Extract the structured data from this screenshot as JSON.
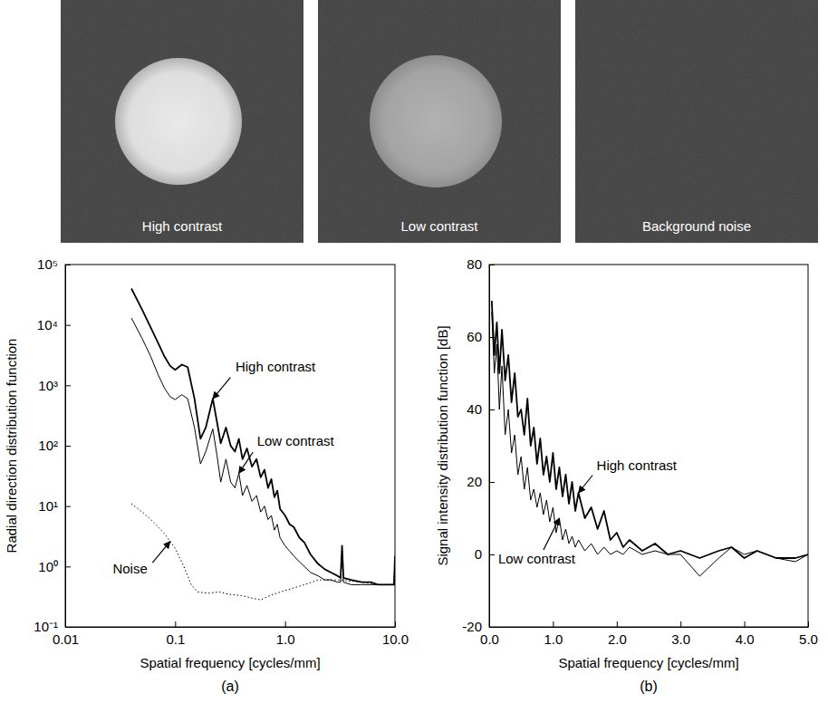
{
  "images": [
    {
      "label": "High contrast"
    },
    {
      "label": "Low contrast"
    },
    {
      "label": "Background noise"
    }
  ],
  "chart_data": [
    {
      "type": "line",
      "caption": "(a)",
      "x_label": "Spatial frequency [cycles/mm]",
      "y_label": "Radial direction distribution function",
      "log": true,
      "grid": false,
      "xlim": [
        0.01,
        10
      ],
      "xticks": [
        0.01,
        0.1,
        {
          "value": 1,
          "label": "1.0"
        },
        {
          "value": 10,
          "label": "10.0"
        }
      ],
      "ylim": [
        0.1,
        100000
      ],
      "yticks": [
        {
          "value": 0.1,
          "label": "10⁻¹"
        },
        {
          "value": 1,
          "label": "10⁰"
        },
        {
          "value": 10,
          "label": "10¹"
        },
        {
          "value": 100,
          "label": "10²"
        },
        {
          "value": 1000,
          "label": "10³"
        },
        {
          "value": 10000,
          "label": "10⁴"
        },
        {
          "value": 100000,
          "label": "10⁵"
        }
      ],
      "series": [
        {
          "name": "High contrast",
          "color": "#000000",
          "line_style": "solid",
          "x": [
            0.04,
            0.05,
            0.06,
            0.07,
            0.08,
            0.09,
            0.1,
            0.115,
            0.13,
            0.15,
            0.17,
            0.19,
            0.22,
            0.24,
            0.26,
            0.29,
            0.32,
            0.35,
            0.38,
            0.41,
            0.45,
            0.5,
            0.55,
            0.6,
            0.65,
            0.7,
            0.75,
            0.8,
            0.85,
            0.9,
            1.0,
            1.1,
            1.2,
            1.35,
            1.5,
            1.7,
            2.0,
            2.3,
            2.6,
            3.0,
            3.2,
            3.3,
            3.4,
            4.0,
            5.0,
            6.0,
            7.0,
            8.0,
            9.0,
            9.8,
            10.0
          ],
          "values": [
            40000,
            18000,
            9000,
            5000,
            3000,
            2100,
            1800,
            2200,
            2000,
            600,
            130,
            200,
            600,
            250,
            110,
            200,
            100,
            80,
            130,
            60,
            90,
            45,
            60,
            30,
            40,
            20,
            28,
            14,
            18,
            9,
            7,
            5,
            4.5,
            3,
            2.5,
            1.6,
            1.1,
            0.9,
            0.8,
            0.7,
            0.65,
            2.2,
            0.65,
            0.6,
            0.55,
            0.55,
            0.5,
            0.5,
            0.5,
            0.5,
            1.5
          ]
        },
        {
          "name": "Low contrast",
          "color": "#000000",
          "line_style": "solid",
          "x": [
            0.04,
            0.05,
            0.06,
            0.07,
            0.08,
            0.09,
            0.1,
            0.115,
            0.13,
            0.15,
            0.17,
            0.19,
            0.22,
            0.24,
            0.26,
            0.29,
            0.32,
            0.35,
            0.38,
            0.41,
            0.45,
            0.5,
            0.55,
            0.6,
            0.65,
            0.7,
            0.75,
            0.8,
            0.85,
            0.9,
            1.0,
            1.1,
            1.2,
            1.35,
            1.5,
            1.7,
            2.0,
            2.3,
            2.6,
            3.0,
            3.2,
            3.3,
            3.4,
            4.0,
            5.0,
            6.0,
            7.0,
            8.0,
            9.0,
            9.8,
            10.0
          ],
          "values": [
            13000,
            6000,
            3000,
            1500,
            900,
            650,
            580,
            700,
            600,
            200,
            50,
            80,
            190,
            70,
            25,
            60,
            25,
            20,
            35,
            15,
            22,
            12,
            15,
            8,
            10,
            6,
            7,
            4,
            5,
            3,
            2.2,
            1.8,
            1.5,
            1.2,
            1.0,
            0.8,
            0.7,
            0.6,
            0.6,
            0.55,
            0.55,
            1.8,
            0.55,
            0.5,
            0.5,
            0.5,
            0.5,
            0.5,
            0.5,
            0.5,
            1.2
          ]
        },
        {
          "name": "Noise",
          "color": "#000000",
          "line_style": "dotted",
          "x": [
            0.04,
            0.05,
            0.06,
            0.07,
            0.08,
            0.09,
            0.1,
            0.12,
            0.14,
            0.16,
            0.2,
            0.25,
            0.3,
            0.4,
            0.5,
            0.6,
            0.7,
            0.8,
            1.0,
            1.5,
            2.0,
            3.0,
            5.0,
            7.0,
            10.0
          ],
          "values": [
            11,
            8,
            6,
            4.5,
            3.5,
            2.6,
            2,
            1,
            0.5,
            0.38,
            0.36,
            0.38,
            0.35,
            0.33,
            0.3,
            0.28,
            0.32,
            0.35,
            0.4,
            0.5,
            0.6,
            0.6,
            0.55,
            0.5,
            0.5
          ]
        }
      ]
    },
    {
      "type": "line",
      "caption": "(b)",
      "x_label": "Spatial frequency [cycles/mm]",
      "y_label": "Signal intensity distribution function [dB]",
      "grid": false,
      "xlim": [
        0,
        5
      ],
      "xticks": [
        {
          "value": 0,
          "label": "0.0"
        },
        {
          "value": 1,
          "label": "1.0"
        },
        {
          "value": 2,
          "label": "2.0"
        },
        {
          "value": 3,
          "label": "3.0"
        },
        {
          "value": 4,
          "label": "4.0"
        },
        {
          "value": 5,
          "label": "5.0"
        }
      ],
      "ylim": [
        -20,
        80
      ],
      "yticks": [
        -20,
        0,
        20,
        40,
        60,
        80
      ],
      "series": [
        {
          "name": "High contrast",
          "color": "#000000",
          "line_style": "solid",
          "x": [
            0.04,
            0.08,
            0.12,
            0.16,
            0.2,
            0.25,
            0.3,
            0.35,
            0.4,
            0.45,
            0.5,
            0.55,
            0.6,
            0.65,
            0.7,
            0.75,
            0.8,
            0.85,
            0.9,
            0.95,
            1.0,
            1.05,
            1.1,
            1.15,
            1.2,
            1.25,
            1.3,
            1.35,
            1.4,
            1.5,
            1.6,
            1.7,
            1.8,
            1.9,
            2.0,
            2.1,
            2.2,
            2.4,
            2.6,
            2.8,
            3.0,
            3.3,
            3.6,
            3.8,
            4.0,
            4.2,
            4.5,
            4.8,
            5.0
          ],
          "values": [
            70,
            55,
            64,
            50,
            62,
            48,
            55,
            42,
            50,
            38,
            40,
            33,
            43,
            30,
            35,
            25,
            32,
            22,
            27,
            20,
            28,
            18,
            24,
            16,
            22,
            14,
            20,
            12,
            17,
            10,
            13,
            7,
            12,
            4,
            6,
            2,
            4,
            1,
            3,
            0,
            1,
            -1,
            1,
            2,
            -1,
            1,
            -1,
            -1,
            0
          ]
        },
        {
          "name": "Low contrast",
          "color": "#000000",
          "line_style": "solid",
          "x": [
            0.04,
            0.08,
            0.12,
            0.16,
            0.2,
            0.25,
            0.3,
            0.35,
            0.4,
            0.45,
            0.5,
            0.55,
            0.6,
            0.65,
            0.7,
            0.75,
            0.8,
            0.85,
            0.9,
            0.95,
            1.0,
            1.05,
            1.1,
            1.15,
            1.2,
            1.25,
            1.3,
            1.35,
            1.4,
            1.5,
            1.6,
            1.7,
            1.8,
            1.9,
            2.0,
            2.1,
            2.2,
            2.4,
            2.6,
            2.8,
            3.0,
            3.3,
            3.6,
            3.8,
            4.0,
            4.2,
            4.5,
            4.8,
            5.0
          ],
          "values": [
            67,
            50,
            58,
            40,
            52,
            33,
            40,
            28,
            33,
            22,
            27,
            18,
            24,
            15,
            18,
            13,
            17,
            11,
            15,
            9,
            13,
            6,
            10,
            4,
            7,
            3,
            5,
            2,
            4,
            1,
            3,
            0,
            2,
            0,
            1,
            0,
            2,
            0,
            1,
            0,
            0,
            -6,
            -1,
            2,
            0,
            1,
            -1,
            -2,
            0
          ]
        }
      ]
    }
  ]
}
